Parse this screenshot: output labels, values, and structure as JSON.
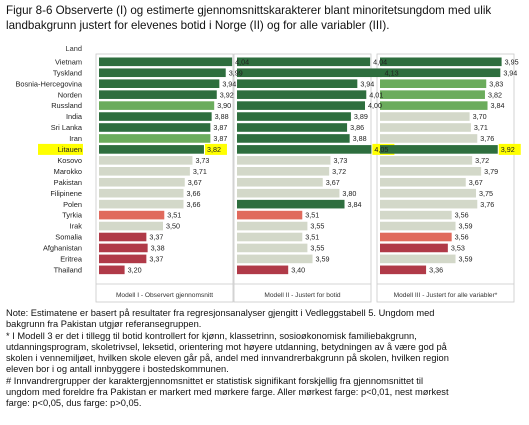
{
  "title_lines": [
    "Figur 8-6 Observerte (I) og estimerte gjennomsnittskarakterer blant minoritetsungdom med ulik",
    "landbakgrunn justert for elevenes botid i Norge (II) og for alle variabler (III)."
  ],
  "chart_data": {
    "type": "bar",
    "orientation": "horizontal",
    "category_header": "Land",
    "categories": [
      "Vietnam",
      "Tyskland",
      "Bosnia-Hercegovina",
      "Norden",
      "Russland",
      "India",
      "Sri Lanka",
      "Iran",
      "Litauen",
      "Kosovo",
      "Marokko",
      "Pakistan",
      "Filipinene",
      "Polen",
      "Tyrkia",
      "Irak",
      "Somalia",
      "Afghanistan",
      "Eritrea",
      "Thailand"
    ],
    "highlighted_category": "Litauen",
    "reference_category": "Pakistan",
    "xlim": [
      3.0,
      4.2
    ],
    "panels": [
      {
        "name": "Modell I - Observert gjennomsnitt",
        "values": [
          4.04,
          3.99,
          3.94,
          3.92,
          3.9,
          3.88,
          3.87,
          3.87,
          3.82,
          3.73,
          3.71,
          3.67,
          3.66,
          3.66,
          3.51,
          3.5,
          3.37,
          3.38,
          3.37,
          3.2
        ],
        "labels": [
          "4,04",
          "3,99",
          "3,94",
          "3,92",
          "3,90",
          "3,88",
          "3,87",
          "3,87",
          "3,82",
          "3,73",
          "3,71",
          "3,67",
          "3,66",
          "3,66",
          "3,51",
          "3,50",
          "3,37",
          "3,38",
          "3,37",
          "3,20"
        ],
        "significance": [
          "p01",
          "p01",
          "p01",
          "p01",
          "p05",
          "p01",
          "p01",
          "p05",
          "p01",
          "ns",
          "ns",
          "ref",
          "ns",
          "ns",
          "neg05",
          "ns",
          "neg01",
          "neg01",
          "neg01",
          "neg01"
        ]
      },
      {
        "name": "Modell II - Justert for botid",
        "values": [
          4.04,
          4.13,
          3.94,
          4.01,
          4.0,
          3.89,
          3.86,
          3.88,
          4.05,
          3.73,
          3.72,
          3.67,
          3.8,
          3.84,
          3.51,
          3.55,
          3.51,
          3.55,
          3.59,
          3.4
        ],
        "labels": [
          "4,04",
          "4,13",
          "3,94",
          "4,01",
          "4,00",
          "3,89",
          "3,86",
          "3,88",
          "4,05",
          "3,73",
          "3,72",
          "3,67",
          "3,80",
          "3,84",
          "3,51",
          "3,55",
          "3,51",
          "3,55",
          "3,59",
          "3,40"
        ],
        "significance": [
          "p01",
          "p01",
          "p01",
          "p01",
          "p01",
          "p01",
          "p01",
          "p01",
          "p01",
          "ns",
          "ns",
          "ref",
          "ns",
          "p01",
          "neg05",
          "ns",
          "ns",
          "ns",
          "ns",
          "neg01"
        ]
      },
      {
        "name": "Modell III - Justert for alle variabler*",
        "values": [
          3.95,
          3.94,
          3.83,
          3.82,
          3.84,
          3.7,
          3.71,
          3.76,
          3.92,
          3.72,
          3.79,
          3.67,
          3.75,
          3.76,
          3.56,
          3.59,
          3.56,
          3.53,
          3.59,
          3.36
        ],
        "labels": [
          "3,95",
          "3,94",
          "3,83",
          "3,82",
          "3,84",
          "3,70",
          "3,71",
          "3,76",
          "3,92",
          "3,72",
          "3,79",
          "3,67",
          "3,75",
          "3,76",
          "3,56",
          "3,59",
          "3,56",
          "3,53",
          "3,59",
          "3,36"
        ],
        "significance": [
          "p01",
          "p01",
          "p05",
          "p05",
          "p05",
          "ns",
          "ns",
          "ns",
          "p01",
          "ns",
          "ns",
          "ref",
          "ns",
          "ns",
          "ns",
          "ns",
          "neg05",
          "neg01",
          "ns",
          "neg01"
        ]
      }
    ],
    "colors": {
      "p01": "#2e6e3e",
      "p05": "#6bac5c",
      "p10": "#a6cf94",
      "ns": "#d3d8c9",
      "ref": "#d3d8c9",
      "neg05": "#e06a5c",
      "neg01": "#b03a48",
      "highlight": "#ffff00",
      "frame": "#c9c9c9"
    },
    "grid": false
  },
  "notes": [
    "Note: Estimatene er basert på resultater fra regresjonsanalyser gjengitt i Vedleggstabell 5. Ungdom med",
    "bakgrunn fra Pakistan utgjør referansegruppen.",
    "* I Modell 3 er det i tillegg til botid kontrollert for kjønn, klassetrinn, sosioøkonomisk familiebakgrunn,",
    "utdanningsprogram, skoletrivsel, leksetid, orientering mot høyere utdanning, betydningen av å være god på",
    "skolen i vennemiljøet, hvilken skole eleven går på, andel med innvandrerbakgrunn på skolen, hvilken region",
    "eleven bor i og antall innbyggere i bostedskommunen.",
    "# Innvandrergrupper der karaktergjennomsnittet er statistisk signifikant forskjellig fra gjennomsnittet til",
    "ungdom med foreldre fra Pakistan er markert med mørkere farge. Aller mørkest farge: p<0,01, nest mørkest",
    "farge: p<0,05, dus farge: p>0,05."
  ]
}
